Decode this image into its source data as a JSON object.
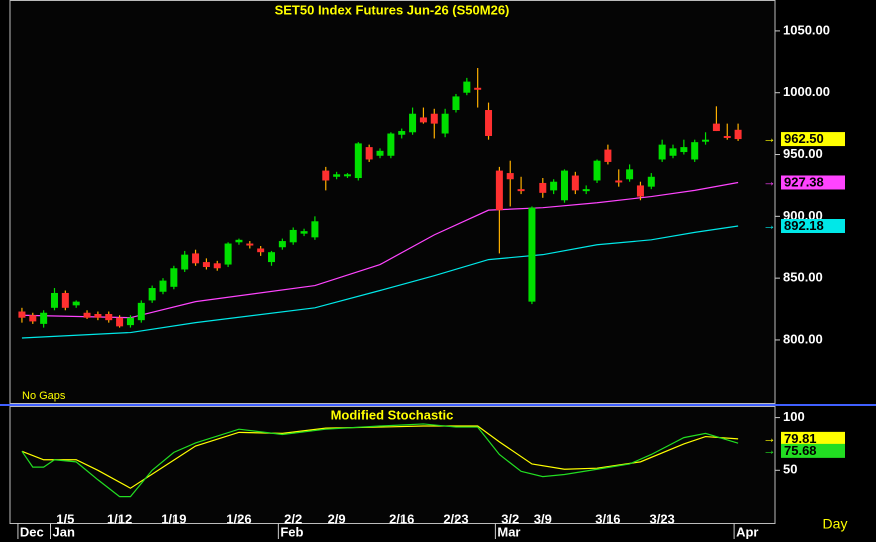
{
  "chart_data": [
    {
      "type": "candlestick",
      "title": "SET50  Index  Futures  Jun-26  (S50M26)",
      "annotation": "No Gaps",
      "xlim": [
        -1.1,
        69.4
      ],
      "ylim": [
        749,
        1075
      ],
      "yticks": [
        {
          "value": 800,
          "label": "800.00"
        },
        {
          "value": 850,
          "label": "850.00"
        },
        {
          "value": 900,
          "label": "900.00"
        },
        {
          "value": 950,
          "label": "950.00"
        },
        {
          "value": 1000,
          "label": "1000.00"
        },
        {
          "value": 1050,
          "label": "1050.00"
        }
      ],
      "up_color": "#00e000",
      "down_color": "#ff3030",
      "last_color": "#ffff00",
      "open": [
        823,
        820,
        813,
        826,
        838,
        828,
        822,
        821,
        821,
        818,
        812,
        816,
        832,
        839,
        843,
        857,
        870,
        863,
        862,
        861,
        879,
        878,
        874,
        863,
        875,
        879,
        886,
        883,
        937,
        932,
        933,
        931,
        956,
        949,
        949,
        966,
        968,
        980,
        983,
        967,
        986,
        1000,
        1004,
        986,
        937,
        935,
        922,
        831,
        927,
        921,
        913,
        933,
        921,
        929,
        954,
        929,
        930,
        925,
        924,
        946,
        949,
        952,
        946,
        962,
        975,
        965,
        970
      ],
      "high": [
        826,
        822,
        824,
        842,
        840,
        832,
        824,
        823,
        823,
        820,
        820,
        832,
        844,
        850,
        860,
        872,
        873,
        866,
        864,
        879,
        882,
        880,
        876,
        872,
        882,
        891,
        890,
        900,
        940,
        936,
        935,
        960,
        958,
        955,
        968,
        971,
        988,
        988,
        987,
        987,
        999,
        1012,
        1020,
        992,
        940,
        945,
        932,
        908,
        931,
        930,
        938,
        936,
        925,
        946,
        958,
        938,
        942,
        928,
        935,
        962,
        958,
        962,
        962,
        968,
        989,
        975,
        975
      ],
      "low": [
        814,
        813,
        810,
        824,
        824,
        826,
        817,
        816,
        814,
        810,
        810,
        814,
        830,
        837,
        841,
        855,
        860,
        857,
        856,
        859,
        877,
        874,
        868,
        860,
        873,
        877,
        884,
        881,
        921,
        930,
        931,
        929,
        944,
        947,
        947,
        963,
        966,
        975,
        963,
        964,
        984,
        998,
        988,
        962,
        870,
        908,
        918,
        829,
        915,
        918,
        911,
        918,
        918,
        927,
        942,
        924,
        928,
        913,
        922,
        944,
        947,
        950,
        944,
        958,
        969,
        962,
        961
      ],
      "close": [
        818,
        815,
        822,
        838,
        826,
        831,
        818,
        818,
        816,
        811,
        818,
        830,
        842,
        848,
        858,
        869,
        862,
        859,
        858,
        878,
        881,
        877,
        871,
        871,
        880,
        889,
        888,
        896,
        929,
        934,
        934,
        959,
        946,
        953,
        967,
        969,
        983,
        976,
        975,
        983,
        997,
        1009,
        1003,
        965,
        905,
        930,
        921,
        907,
        919,
        928,
        937,
        921,
        922,
        945,
        944,
        928,
        938,
        916,
        932,
        958,
        955,
        956,
        960,
        962,
        969,
        964,
        962.5
      ],
      "last_label": "962.50",
      "overlays": [
        {
          "color": "#ff44ff",
          "x": [
            0,
            10,
            16,
            27,
            33,
            38,
            43,
            48,
            53,
            58,
            62,
            66
          ],
          "values": [
            820,
            818,
            831,
            844,
            861,
            885,
            905,
            907,
            911,
            916,
            921,
            927.38
          ],
          "last_label": "927.38"
        },
        {
          "color": "#00e8e8",
          "x": [
            0,
            10,
            16,
            27,
            33,
            38,
            43,
            48,
            53,
            58,
            62,
            66
          ],
          "values": [
            801.6,
            806,
            814,
            826,
            840,
            852,
            865,
            869,
            877,
            881,
            887,
            892.18
          ],
          "last_label": "892.18"
        }
      ]
    },
    {
      "type": "line",
      "title": "Modified Stochastic",
      "x_axis_label": "Day",
      "xlim": [
        -1.1,
        69.4
      ],
      "ylim": [
        0,
        111
      ],
      "yticks": [
        50,
        100
      ],
      "xticks": [
        {
          "value": 4,
          "label": "1/5"
        },
        {
          "value": 9,
          "label": "1/12"
        },
        {
          "value": 14,
          "label": "1/19"
        },
        {
          "value": 20,
          "label": "1/26"
        },
        {
          "value": 25,
          "label": "2/2"
        },
        {
          "value": 29,
          "label": "2/9"
        },
        {
          "value": 35,
          "label": "2/16"
        },
        {
          "value": 40,
          "label": "2/23"
        },
        {
          "value": 45,
          "label": "3/2"
        },
        {
          "value": 48,
          "label": "3/9"
        },
        {
          "value": 54,
          "label": "3/16"
        },
        {
          "value": 59,
          "label": "3/23"
        }
      ],
      "month_ticks": [
        {
          "value": 0,
          "label": "Dec"
        },
        {
          "value": 3,
          "label": "Jan"
        },
        {
          "value": 24,
          "label": "Feb"
        },
        {
          "value": 44,
          "label": "Mar"
        },
        {
          "value": 66,
          "label": "Apr"
        }
      ],
      "series": [
        {
          "color": "#ffff00",
          "x": [
            0,
            2,
            5,
            7,
            10,
            13,
            16,
            20,
            24,
            28,
            33,
            37,
            42,
            44,
            47,
            50,
            53,
            57,
            61,
            63,
            66
          ],
          "values": [
            68,
            60,
            60,
            50,
            33,
            53,
            73,
            86,
            85,
            90,
            91,
            92,
            92,
            77,
            56,
            51,
            52,
            58,
            75,
            82,
            79.81
          ],
          "last_label": "79.81"
        },
        {
          "color": "#22dd22",
          "x": [
            0,
            1,
            2,
            3,
            5,
            7,
            9,
            10,
            12,
            14,
            16,
            20,
            24,
            28,
            33,
            37,
            40,
            42,
            44,
            46,
            48,
            50,
            53,
            56,
            58,
            61,
            63,
            66
          ],
          "values": [
            68,
            53,
            53,
            60,
            58,
            41,
            25,
            25,
            50,
            67,
            76,
            89,
            84,
            89,
            92,
            94,
            91,
            91,
            65,
            49,
            44,
            46,
            51,
            56,
            65,
            81,
            85,
            75.68
          ],
          "last_label": "75.68"
        }
      ]
    }
  ]
}
